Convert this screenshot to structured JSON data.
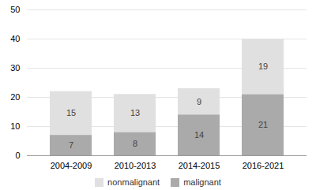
{
  "chart_data": {
    "type": "bar",
    "stacked": true,
    "categories": [
      "2004-2009",
      "2010-2013",
      "2014-2015",
      "2016-2021"
    ],
    "series": [
      {
        "name": "malignant",
        "color": "#aaaaaa",
        "values": [
          7,
          8,
          14,
          21
        ]
      },
      {
        "name": "nonmalignant",
        "color": "#e0e0e0",
        "values": [
          15,
          13,
          9,
          19
        ]
      }
    ],
    "ylim": [
      0,
      50
    ],
    "yticks": [
      0,
      10,
      20,
      30,
      40,
      50
    ],
    "grid": true,
    "data_labels": true,
    "legend": "bottom"
  }
}
